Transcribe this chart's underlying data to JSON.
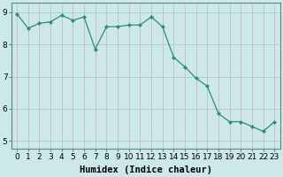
{
  "x": [
    0,
    1,
    2,
    3,
    4,
    5,
    6,
    7,
    8,
    9,
    10,
    11,
    12,
    13,
    14,
    15,
    16,
    17,
    18,
    19,
    20,
    21,
    22,
    23
  ],
  "y": [
    8.95,
    8.5,
    8.65,
    8.7,
    8.9,
    8.75,
    8.85,
    7.85,
    8.55,
    8.55,
    8.6,
    8.6,
    8.85,
    8.55,
    7.6,
    7.3,
    6.95,
    6.7,
    5.85,
    5.6,
    5.6,
    5.45,
    5.3,
    5.6
  ],
  "line_color": "#2e8b7a",
  "marker": "D",
  "marker_size": 2.0,
  "bg_color": "#cce8e8",
  "grid_color": "#aacccc",
  "axis_color": "#5a8a8a",
  "xlabel": "Humidex (Indice chaleur)",
  "xlim": [
    -0.5,
    23.5
  ],
  "ylim": [
    4.75,
    9.3
  ],
  "yticks": [
    5,
    6,
    7,
    8,
    9
  ],
  "xticks": [
    0,
    1,
    2,
    3,
    4,
    5,
    6,
    7,
    8,
    9,
    10,
    11,
    12,
    13,
    14,
    15,
    16,
    17,
    18,
    19,
    20,
    21,
    22,
    23
  ],
  "tick_font_size": 6.5,
  "label_font_size": 7.5,
  "line_width": 0.9
}
